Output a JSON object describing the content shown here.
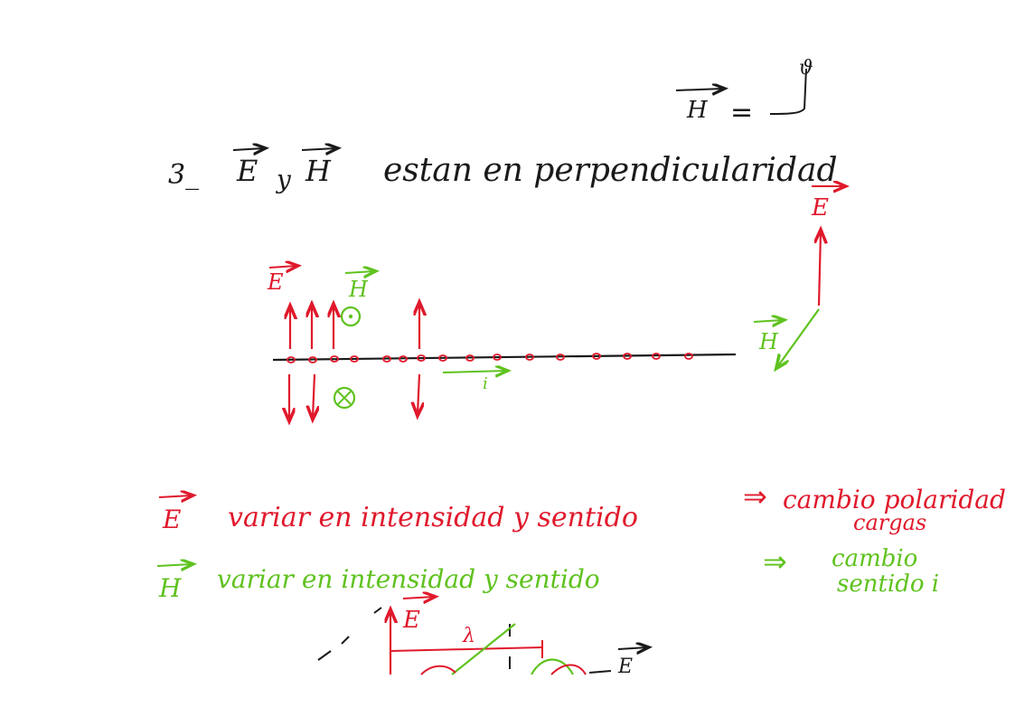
{
  "colors": {
    "ink_black": "#1a1a1a",
    "ink_red": "#e0192c",
    "ink_green": "#5fc21e"
  },
  "top_note": {
    "H": "H",
    "equals": "=",
    "symbol": "ϑ"
  },
  "heading": {
    "number": "3_",
    "E": "E",
    "y": "y",
    "H": "H",
    "text": "estan en perpendicularidad"
  },
  "diagram": {
    "E_label": "E",
    "H_label": "H",
    "current_label": "i",
    "side_E_label": "E",
    "side_H_label": "H"
  },
  "line_E": {
    "vector": "E",
    "text": "variar en intensidad y sentido",
    "result": "cambio polaridad",
    "result_line2": "cargas"
  },
  "line_H": {
    "vector": "H",
    "text": "variar en intensidad y sentido",
    "result": "cambio",
    "result_line2": "sentido i"
  },
  "wave": {
    "E_label": "E",
    "lambda": "λ",
    "right_label": "E"
  }
}
